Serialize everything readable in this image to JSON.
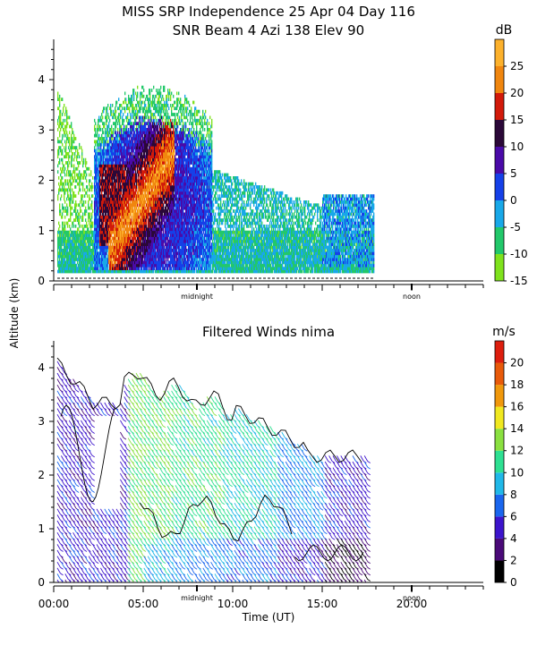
{
  "page": {
    "title_line1": "MISS SRP Independence  25 Apr 04 Day 116",
    "title_line2": "SNR Beam 4 Azi 138 Elev 90",
    "shared_ylabel": "Altitude (km)"
  },
  "chart_data": [
    {
      "type": "heatmap",
      "title": "SNR Beam 4 Azi 138 Elev 90",
      "ylabel": "Altitude (km)",
      "xlabel": "",
      "ylim": [
        0,
        4.8
      ],
      "xlim_hours": [
        0,
        24
      ],
      "y_ticks": [
        "0",
        "1",
        "2",
        "3",
        "4"
      ],
      "time_markers": [
        {
          "label": "midnight",
          "hour": 8
        },
        {
          "label": "noon",
          "hour": 20
        }
      ],
      "colorbar": {
        "unit": "dB",
        "range": [
          -15,
          30
        ],
        "ticks": [
          "-15",
          "-10",
          "-5",
          "0",
          "5",
          "10",
          "15",
          "20",
          "25"
        ],
        "colors": [
          "#7fe21d",
          "#22c86a",
          "#18a8e8",
          "#1540e8",
          "#4a0aa8",
          "#2b0838",
          "#d21a0a",
          "#f0860f",
          "#fcb12c"
        ]
      },
      "data_extent_hours": [
        0.2,
        17.9
      ],
      "regions": [
        {
          "name": "noise floor band",
          "t": [
            0.2,
            17.9
          ],
          "alt": [
            0.15,
            0.9
          ],
          "snr_db": -5
        },
        {
          "name": "main echo layer",
          "t": [
            2.2,
            8.7
          ],
          "alt": [
            0.2,
            3.2
          ],
          "snr_db": 10
        },
        {
          "name": "core enhancement",
          "t": [
            3.0,
            6.8
          ],
          "alt": [
            0.5,
            2.6
          ],
          "snr_db": 17
        },
        {
          "name": "diagonal maximum",
          "t": [
            3.3,
            6.5
          ],
          "alt": [
            0.7,
            2.5
          ],
          "snr_db": 23
        },
        {
          "name": "late weak layer",
          "t": [
            15.0,
            17.9
          ],
          "alt": [
            0.3,
            1.7
          ],
          "snr_db": -5
        }
      ]
    },
    {
      "type": "barbs",
      "title": "Filtered Winds nima",
      "xlabel": "Time (UT)",
      "ylabel": "Altitude (km)",
      "ylim": [
        0,
        4.5
      ],
      "xlim_hours": [
        0,
        24
      ],
      "y_ticks": [
        "0",
        "1",
        "2",
        "3",
        "4"
      ],
      "x_ticks": [
        "00:00",
        "05:00",
        "10:00",
        "15:00",
        "20:00"
      ],
      "x_tick_hours": [
        0,
        5,
        10,
        15,
        20
      ],
      "time_markers": [
        {
          "label": "midnight",
          "hour": 8
        },
        {
          "label": "noon",
          "hour": 20
        }
      ],
      "colorbar": {
        "unit": "m/s",
        "range": [
          0,
          22
        ],
        "ticks": [
          "0",
          "2",
          "4",
          "6",
          "8",
          "10",
          "12",
          "14",
          "16",
          "18",
          "20"
        ],
        "colors": [
          "#000000",
          "#4a0a78",
          "#3c14cc",
          "#1a66ee",
          "#20b8e8",
          "#2ee092",
          "#8ae040",
          "#f0e820",
          "#f0980c",
          "#e85a0a",
          "#dd1e0e"
        ]
      },
      "data_extent_hours": [
        0.2,
        17.4
      ],
      "wind_speed_profile": [
        {
          "t_start": 0.0,
          "t_end": 4.0,
          "speed_ms": 5
        },
        {
          "t_start": 4.0,
          "t_end": 6.5,
          "speed_ms": 12
        },
        {
          "t_start": 6.5,
          "t_end": 9.5,
          "speed_ms": 11
        },
        {
          "t_start": 9.5,
          "t_end": 12.5,
          "speed_ms": 10
        },
        {
          "t_start": 12.5,
          "t_end": 15.0,
          "speed_ms": 8
        },
        {
          "t_start": 15.0,
          "t_end": 17.4,
          "speed_ms": 5
        }
      ]
    }
  ]
}
